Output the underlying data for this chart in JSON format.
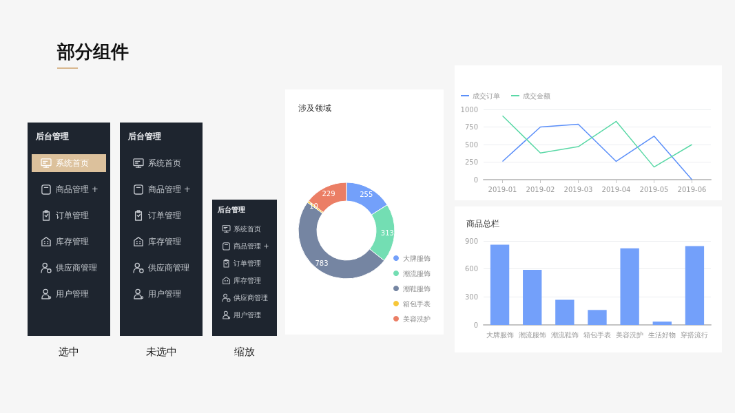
{
  "chart_data": [
    {
      "type": "other",
      "title": "部分组件",
      "color": "#d9b88f"
    },
    {
      "type": "other",
      "title": "后台管理",
      "categories": [
        "系统首页",
        "商品管理 +",
        "订单管理",
        "库存管理",
        "供应商管理",
        "用户管理"
      ],
      "colors": [
        "#dcc19c",
        null,
        null,
        null,
        null,
        null
      ],
      "annotations": [
        "选中"
      ]
    },
    {
      "type": "other",
      "title": "后台管理",
      "categories": [
        "系统首页",
        "商品管理 +",
        "订单管理",
        "库存管理",
        "供应商管理",
        "用户管理"
      ],
      "annotations": [
        "未选中"
      ]
    },
    {
      "type": "other",
      "title": "后台管理",
      "categories": [
        "系统首页",
        "商品管理 +",
        "订单管理",
        "库存管理",
        "供应商管理",
        "用户管理"
      ],
      "annotations": [
        "缩放"
      ]
    },
    {
      "type": "donut",
      "title": "涉及领域",
      "categories": [
        "大牌服饰",
        "潮流服饰",
        "潮鞋服饰",
        "箱包手表",
        "美容洗护"
      ],
      "values": [
        255,
        313,
        783,
        10,
        229
      ],
      "colors": [
        "#73a0fa",
        "#73deb3",
        "#7585a2",
        "#f7c739",
        "#eb7e65"
      ],
      "data_labels": true,
      "legend": "bottom right"
    },
    {
      "type": "line",
      "categories": [
        "2019-01",
        "2019-02",
        "2019-03",
        "2019-04",
        "2019-05",
        "2019-06"
      ],
      "series": [
        {
          "name": "成交订单",
          "color": "#5b8ff9",
          "values": [
            260,
            750,
            790,
            260,
            620,
            0
          ]
        },
        {
          "name": "成交金额",
          "color": "#5ad8a6",
          "values": [
            910,
            380,
            470,
            830,
            180,
            500
          ]
        }
      ],
      "ylim": [
        0,
        1000
      ],
      "yticks": [
        0,
        250,
        500,
        750,
        1000
      ],
      "grid": "y",
      "legend": "top left",
      "marker": "none"
    },
    {
      "type": "bar",
      "title": "商品总栏",
      "categories": [
        "大牌服饰",
        "潮流服饰",
        "潮流鞋饰",
        "箱包手表",
        "美容洗护",
        "生活好物",
        "穿搭流行"
      ],
      "values": [
        860,
        590,
        270,
        160,
        820,
        35,
        845
      ],
      "color": "#73a0fa",
      "ylim": [
        0,
        900
      ],
      "yticks": [
        0,
        300,
        600,
        900
      ],
      "grid": "y"
    }
  ]
}
